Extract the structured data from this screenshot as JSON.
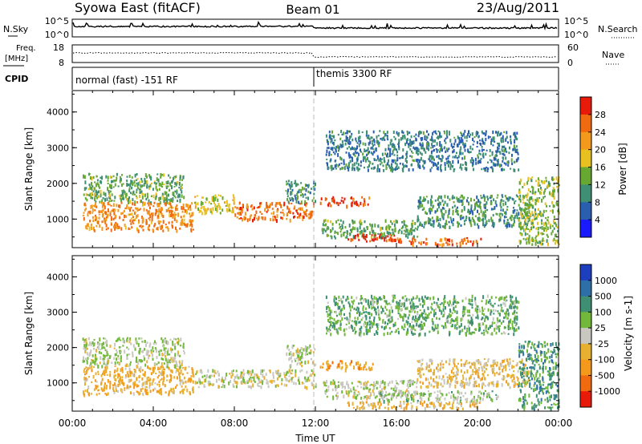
{
  "header": {
    "title": "Syowa East (fitACF)",
    "beam": "Beam 01",
    "date": "23/Aug/2011"
  },
  "noise_panel": {
    "left_label": "N.Sky",
    "right_label": "N.Search",
    "left_ticks": [
      "10^5",
      "10^0"
    ],
    "right_ticks": [
      "10^5",
      "10^0"
    ]
  },
  "freq_panel": {
    "left_label_line1": "Freq.",
    "left_label_line2": "[MHz]",
    "left_ticks": [
      "18",
      "8"
    ],
    "right_label": "Nave",
    "right_ticks": [
      "60",
      "0"
    ]
  },
  "cpid_panel": {
    "label": "CPID",
    "segments": [
      {
        "start_hour": 0,
        "end_hour": 12,
        "text": "normal (fast) -151 RF"
      },
      {
        "start_hour": 12,
        "end_hour": 24,
        "text": "themis 3300 RF"
      }
    ]
  },
  "colors": {
    "power_scale": [
      "#1a1aff",
      "#2a5fb0",
      "#3e8f74",
      "#66a832",
      "#e8c020",
      "#f39a1c",
      "#f06a10",
      "#e81a0a"
    ],
    "velocity_scale": [
      "#e81a0a",
      "#f06a10",
      "#f39a1c",
      "#e8b030",
      "#c8c8c0",
      "#72b83a",
      "#3e8f74",
      "#2f6fa8",
      "#1e3ec0"
    ]
  },
  "chart_data": [
    {
      "type": "heatmap",
      "name": "power",
      "ylabel": "Slant Range [km]",
      "xlim": [
        0,
        24
      ],
      "ylim": [
        200,
        4600
      ],
      "x_ticks": [
        "00:00",
        "04:00",
        "08:00",
        "12:00",
        "16:00",
        "20:00",
        "00:00"
      ],
      "y_ticks": [
        1000,
        2000,
        3000,
        4000
      ],
      "colorbar": {
        "label": "Power [dB]",
        "ticks": [
          "28",
          "24",
          "20",
          "16",
          "12",
          "8",
          "4"
        ],
        "range": [
          0,
          30
        ]
      },
      "regions": [
        {
          "x": [
            0.5,
            6.0
          ],
          "y": [
            700,
            1500
          ],
          "value": 22
        },
        {
          "x": [
            0.5,
            5.5
          ],
          "y": [
            1500,
            2300
          ],
          "value": 12
        },
        {
          "x": [
            6.0,
            8.0
          ],
          "y": [
            1200,
            1700
          ],
          "value": 16
        },
        {
          "x": [
            8.0,
            11.9
          ],
          "y": [
            1000,
            1500
          ],
          "value": 24
        },
        {
          "x": [
            10.5,
            12.0
          ],
          "y": [
            1500,
            2100
          ],
          "value": 10
        },
        {
          "x": [
            12.2,
            14.8
          ],
          "y": [
            1400,
            1650
          ],
          "value": 26
        },
        {
          "x": [
            12.3,
            17.0
          ],
          "y": [
            500,
            1000
          ],
          "value": 12
        },
        {
          "x": [
            13.5,
            16.0
          ],
          "y": [
            400,
            600
          ],
          "value": 28
        },
        {
          "x": [
            16.0,
            20.2
          ],
          "y": [
            300,
            500
          ],
          "value": 24
        },
        {
          "x": [
            12.5,
            22.0
          ],
          "y": [
            2400,
            3500
          ],
          "value": 8
        },
        {
          "x": [
            17.0,
            22.5
          ],
          "y": [
            800,
            1700
          ],
          "value": 10
        },
        {
          "x": [
            22.0,
            24.0
          ],
          "y": [
            300,
            2200
          ],
          "value": 14
        }
      ]
    },
    {
      "type": "heatmap",
      "name": "velocity",
      "ylabel": "Slant Range [km]",
      "xlabel": "Time UT",
      "xlim": [
        0,
        24
      ],
      "ylim": [
        200,
        4600
      ],
      "x_ticks": [
        "00:00",
        "04:00",
        "08:00",
        "12:00",
        "16:00",
        "20:00",
        "00:00"
      ],
      "y_ticks": [
        1000,
        2000,
        3000,
        4000
      ],
      "colorbar": {
        "label": "Velocity [m s-1]",
        "ticks": [
          "1000",
          "500",
          "100",
          "25",
          "-25",
          "-100",
          "-500",
          "-1000"
        ],
        "range": [
          -1000,
          1000
        ]
      },
      "regions": [
        {
          "x": [
            0.5,
            6.0
          ],
          "y": [
            700,
            1500
          ],
          "value": -300
        },
        {
          "x": [
            0.5,
            5.5
          ],
          "y": [
            1500,
            2300
          ],
          "value": 80
        },
        {
          "x": [
            6.0,
            12.0
          ],
          "y": [
            900,
            1400
          ],
          "value": 0
        },
        {
          "x": [
            10.5,
            12.0
          ],
          "y": [
            1500,
            2100
          ],
          "value": 50
        },
        {
          "x": [
            12.2,
            14.8
          ],
          "y": [
            1400,
            1650
          ],
          "value": -400
        },
        {
          "x": [
            12.3,
            17.0
          ],
          "y": [
            600,
            1100
          ],
          "value": 60
        },
        {
          "x": [
            13.5,
            20.2
          ],
          "y": [
            300,
            500
          ],
          "value": -200
        },
        {
          "x": [
            15.0,
            21.0
          ],
          "y": [
            500,
            800
          ],
          "value": 150
        },
        {
          "x": [
            12.5,
            22.0
          ],
          "y": [
            2400,
            3500
          ],
          "value": 300
        },
        {
          "x": [
            17.0,
            22.5
          ],
          "y": [
            900,
            1700
          ],
          "value": -150
        },
        {
          "x": [
            22.0,
            24.0
          ],
          "y": [
            300,
            2200
          ],
          "value": 400
        }
      ]
    }
  ]
}
